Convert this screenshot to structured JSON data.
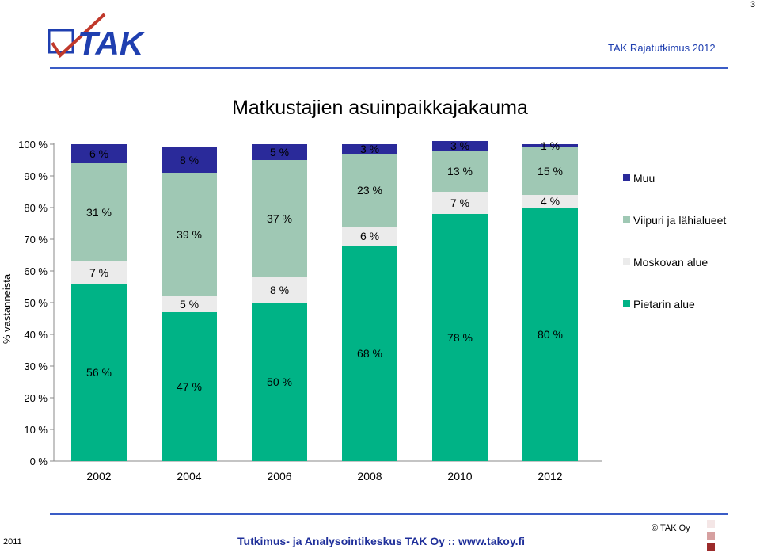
{
  "page_number": "3",
  "logo_text": "TAK",
  "report_title": "TAK Rajatutkimus 2012",
  "footer": {
    "year": "2011",
    "organization": "Tutkimus- ja Analysointikeskus TAK Oy  ::  www.takoy.fi",
    "copyright": "© TAK Oy"
  },
  "colors": {
    "brand_blue": "#1f3fb0",
    "muu": "#2a2a9a",
    "viipuri": "#9fc8b4",
    "moskova": "#ebebeb",
    "pietari": "#00b386",
    "footer_squares": [
      "#f4e6e6",
      "#d6a0a0",
      "#9b2b2b"
    ]
  },
  "chart_data": {
    "type": "bar",
    "stacked": true,
    "title": "Matkustajien asuinpaikkajakauma",
    "xlabel": "",
    "ylabel": "% vastanneista",
    "categories": [
      "2002",
      "2004",
      "2006",
      "2008",
      "2010",
      "2012"
    ],
    "ylim": [
      0,
      100
    ],
    "y_ticks": [
      "0 %",
      "10 %",
      "20 %",
      "30 %",
      "40 %",
      "50 %",
      "60 %",
      "70 %",
      "80 %",
      "90 %",
      "100 %"
    ],
    "grid": false,
    "legend_position": "right",
    "series": [
      {
        "name": "Pietarin alue",
        "color": "#00b386",
        "values": [
          56,
          47,
          50,
          68,
          78,
          80
        ],
        "labels": [
          "56 %",
          "47 %",
          "50 %",
          "68 %",
          "78 %",
          "80 %"
        ]
      },
      {
        "name": "Moskovan alue",
        "color": "#ebebeb",
        "values": [
          7,
          5,
          8,
          6,
          7,
          4
        ],
        "labels": [
          "7 %",
          "5 %",
          "8 %",
          "6 %",
          "7 %",
          "4 %"
        ]
      },
      {
        "name": "Viipuri ja lähialueet",
        "color": "#9fc8b4",
        "values": [
          31,
          39,
          37,
          23,
          13,
          15
        ],
        "labels": [
          "31 %",
          "39 %",
          "37 %",
          "23 %",
          "13 %",
          "15 %"
        ]
      },
      {
        "name": "Muu",
        "color": "#2a2a9a",
        "values": [
          6,
          8,
          5,
          3,
          3,
          1
        ],
        "labels": [
          "6 %",
          "8 %",
          "5 %",
          "3 %",
          "3 %",
          "1 %"
        ]
      }
    ],
    "legend_order": [
      "Muu",
      "Viipuri ja lähialueet",
      "Moskovan alue",
      "Pietarin alue"
    ]
  }
}
